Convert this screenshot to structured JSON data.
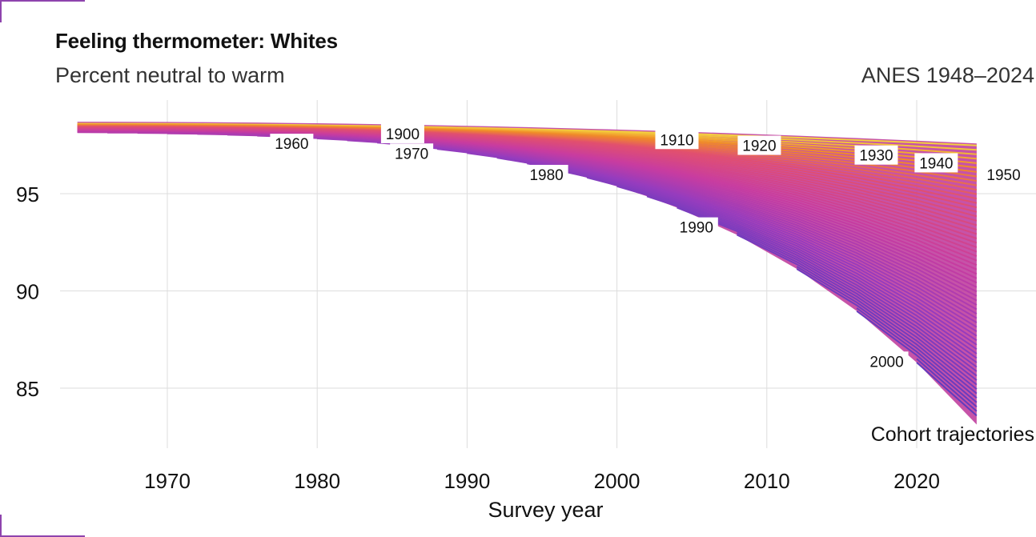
{
  "title": "Feeling thermometer: Whites",
  "subtitle": "Percent neutral to warm",
  "source": "ANES 1948–2024",
  "caption": "Cohort trajectories",
  "chart_data": {
    "type": "line",
    "xlabel": "Survey year",
    "ylabel": "",
    "xlim": [
      1958,
      2026
    ],
    "ylim": [
      83,
      98.5
    ],
    "x_ticks": [
      1970,
      1980,
      1990,
      2000,
      2010,
      2020
    ],
    "y_ticks": [
      85,
      90,
      95
    ],
    "grid": true,
    "survey_years": [
      1964,
      1966,
      1968,
      1970,
      1972,
      1974,
      1976,
      1978,
      1980,
      1982,
      1984,
      1986,
      1988,
      1990,
      1992,
      1994,
      1996,
      1998,
      2000,
      2002,
      2004,
      2008,
      2012,
      2016,
      2020,
      2024
    ],
    "cohort_range": [
      1880,
      2006
    ],
    "cohort_labels": [
      {
        "cohort": 1900,
        "x": 1985.7,
        "y": 97.8
      },
      {
        "cohort": 1910,
        "x": 2004,
        "y": 97.5
      },
      {
        "cohort": 1920,
        "x": 2009.5,
        "y": 97.2
      },
      {
        "cohort": 1930,
        "x": 2017.3,
        "y": 96.7
      },
      {
        "cohort": 1940,
        "x": 2021.3,
        "y": 96.3
      },
      {
        "cohort": 1950,
        "x": 2025.8,
        "y": 95.7
      },
      {
        "cohort": 1960,
        "x": 1978.3,
        "y": 97.3
      },
      {
        "cohort": 1970,
        "x": 1986.3,
        "y": 96.8
      },
      {
        "cohort": 1980,
        "x": 1995.3,
        "y": 95.7
      },
      {
        "cohort": 1990,
        "x": 2005.3,
        "y": 93.0
      },
      {
        "cohort": 2000,
        "x": 2018.0,
        "y": 86.1
      }
    ],
    "trajectory_end_2024": {
      "oldest_cohort": 97.8,
      "youngest_cohort": 83.9
    }
  }
}
